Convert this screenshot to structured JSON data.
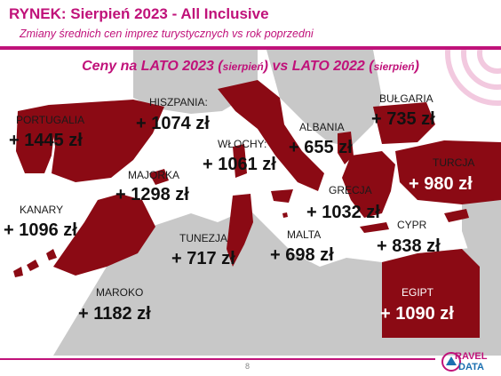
{
  "header": {
    "title": "RYNEK: Sierpień 2023 - All Inclusive",
    "subtitle": "Zmiany średnich cen imprez turystycznych vs rok poprzedni"
  },
  "map_title": {
    "part1": "Ceny na LATO 2023 (",
    "paren1": "sierpień",
    "part2": ") vs  LATO 2022 (",
    "paren2": "sierpień",
    "part3": ")"
  },
  "colors": {
    "brand": "#c0127a",
    "land_highlight": "#8b0a14",
    "land_other": "#c8c8c8",
    "sea": "#ffffff"
  },
  "countries": [
    {
      "name": "PORTUGALIA",
      "value": "+ 1445 zł"
    },
    {
      "name": "HISZPANIA:",
      "value": "+ 1074 zł"
    },
    {
      "name": "WŁOCHY:",
      "value": "+ 1061 zł"
    },
    {
      "name": "ALBANIA",
      "value": "+ 655 zł"
    },
    {
      "name": "BUŁGARIA",
      "value": "+ 735 zł"
    },
    {
      "name": "TURCJA",
      "value": "+ 980 zł"
    },
    {
      "name": "MAJORKA",
      "value": "+ 1298 zł"
    },
    {
      "name": "GRECJA",
      "value": "+ 1032 zł"
    },
    {
      "name": "KANARY",
      "value": "+ 1096 zł"
    },
    {
      "name": "CYPR",
      "value": "+ 838 zł"
    },
    {
      "name": "TUNEZJA",
      "value": "+ 717 zł"
    },
    {
      "name": "MALTA",
      "value": "+ 698 zł"
    },
    {
      "name": "MAROKO",
      "value": "+ 1182 zł"
    },
    {
      "name": "EGIPT",
      "value": "+ 1090 zł"
    }
  ],
  "footer": {
    "page_number": "8",
    "logo_line1": "RAVEL",
    "logo_line2": "DATA",
    "logo_icon": "travel-data-logo-icon"
  }
}
